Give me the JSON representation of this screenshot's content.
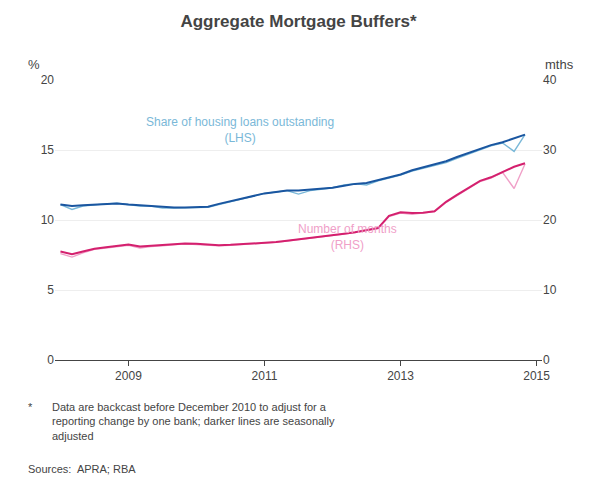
{
  "chart_data": {
    "type": "line",
    "title": "Aggregate Mortgage Buffers*",
    "ylabel": "%",
    "y2label": "mths",
    "x": [
      2008.0,
      2008.17,
      2008.33,
      2008.5,
      2008.67,
      2008.83,
      2009.0,
      2009.17,
      2009.33,
      2009.5,
      2009.67,
      2009.83,
      2010.0,
      2010.17,
      2010.33,
      2010.5,
      2010.67,
      2010.83,
      2011.0,
      2011.17,
      2011.33,
      2011.5,
      2011.67,
      2011.83,
      2012.0,
      2012.17,
      2012.33,
      2012.5,
      2012.67,
      2012.83,
      2013.0,
      2013.17,
      2013.33,
      2013.5,
      2013.67,
      2013.83,
      2014.0,
      2014.17,
      2014.33,
      2014.5,
      2014.67,
      2014.83
    ],
    "series": [
      {
        "color": "#7ab8d8",
        "axis": "y",
        "values": [
          11.1,
          10.75,
          11.0,
          11.1,
          11.15,
          11.2,
          11.1,
          11.0,
          11.0,
          10.85,
          10.85,
          10.85,
          10.85,
          10.9,
          11.1,
          11.3,
          11.5,
          11.7,
          11.9,
          12.0,
          12.1,
          11.85,
          12.1,
          12.2,
          12.3,
          12.5,
          12.6,
          12.5,
          12.8,
          13.0,
          13.2,
          13.5,
          13.7,
          13.9,
          14.1,
          14.4,
          14.7,
          15.0,
          15.3,
          15.5,
          14.9,
          16.1
        ]
      },
      {
        "color": "#1a56a0",
        "axis": "y",
        "values": [
          11.1,
          11.0,
          11.05,
          11.1,
          11.15,
          11.18,
          11.1,
          11.05,
          11.0,
          10.92,
          10.9,
          10.9,
          10.9,
          10.95,
          11.15,
          11.35,
          11.55,
          11.72,
          11.9,
          12.0,
          12.1,
          12.1,
          12.15,
          12.2,
          12.3,
          12.45,
          12.58,
          12.65,
          12.85,
          13.05,
          13.25,
          13.55,
          13.75,
          13.95,
          14.2,
          14.5,
          14.8,
          15.1,
          15.35,
          15.55,
          15.85,
          16.1
        ]
      },
      {
        "color": "#f0a0c8",
        "axis": "y2",
        "values": [
          15.2,
          14.7,
          15.3,
          15.8,
          16.0,
          16.2,
          16.4,
          16.0,
          16.2,
          16.3,
          16.5,
          16.6,
          16.5,
          16.4,
          16.3,
          16.4,
          16.5,
          16.6,
          16.6,
          16.8,
          17.0,
          17.2,
          17.4,
          17.5,
          17.8,
          18.0,
          18.2,
          18.5,
          18.8,
          20.5,
          21.0,
          20.8,
          21.0,
          21.2,
          22.5,
          23.5,
          24.5,
          25.5,
          26.0,
          26.8,
          24.5,
          28.0
        ]
      },
      {
        "color": "#d4206e",
        "axis": "y2",
        "values": [
          15.5,
          15.1,
          15.5,
          15.9,
          16.1,
          16.3,
          16.5,
          16.2,
          16.3,
          16.4,
          16.55,
          16.65,
          16.6,
          16.5,
          16.4,
          16.45,
          16.55,
          16.65,
          16.65,
          16.85,
          17.05,
          17.25,
          17.45,
          17.55,
          17.85,
          18.05,
          18.25,
          18.55,
          18.85,
          20.6,
          21.1,
          21.0,
          21.05,
          21.25,
          22.6,
          23.6,
          24.6,
          25.6,
          26.1,
          26.9,
          27.6,
          28.1
        ]
      }
    ],
    "xlim": [
      2007.92,
      2015.08
    ],
    "xticks": [
      2009,
      2011,
      2013,
      2015
    ],
    "ylim": [
      0,
      20
    ],
    "yticks": [
      0,
      5,
      10,
      15,
      20
    ],
    "y2lim": [
      0,
      40
    ],
    "y2ticks": [
      0,
      10,
      20,
      30,
      40
    ],
    "grid": true,
    "annotations": [
      {
        "text": "Share of housing loans outstanding\n(LHS)",
        "color": "#7ab8d8"
      },
      {
        "text": "Number of months\n(RHS)",
        "color": "#f0a0c8"
      }
    ],
    "footnotes": [
      "*",
      "Data are backcast before December 2010 to adjust for a\nreporting change by one bank; darker lines are seasonally\nadjusted",
      "Sources:  APRA; RBA"
    ]
  }
}
